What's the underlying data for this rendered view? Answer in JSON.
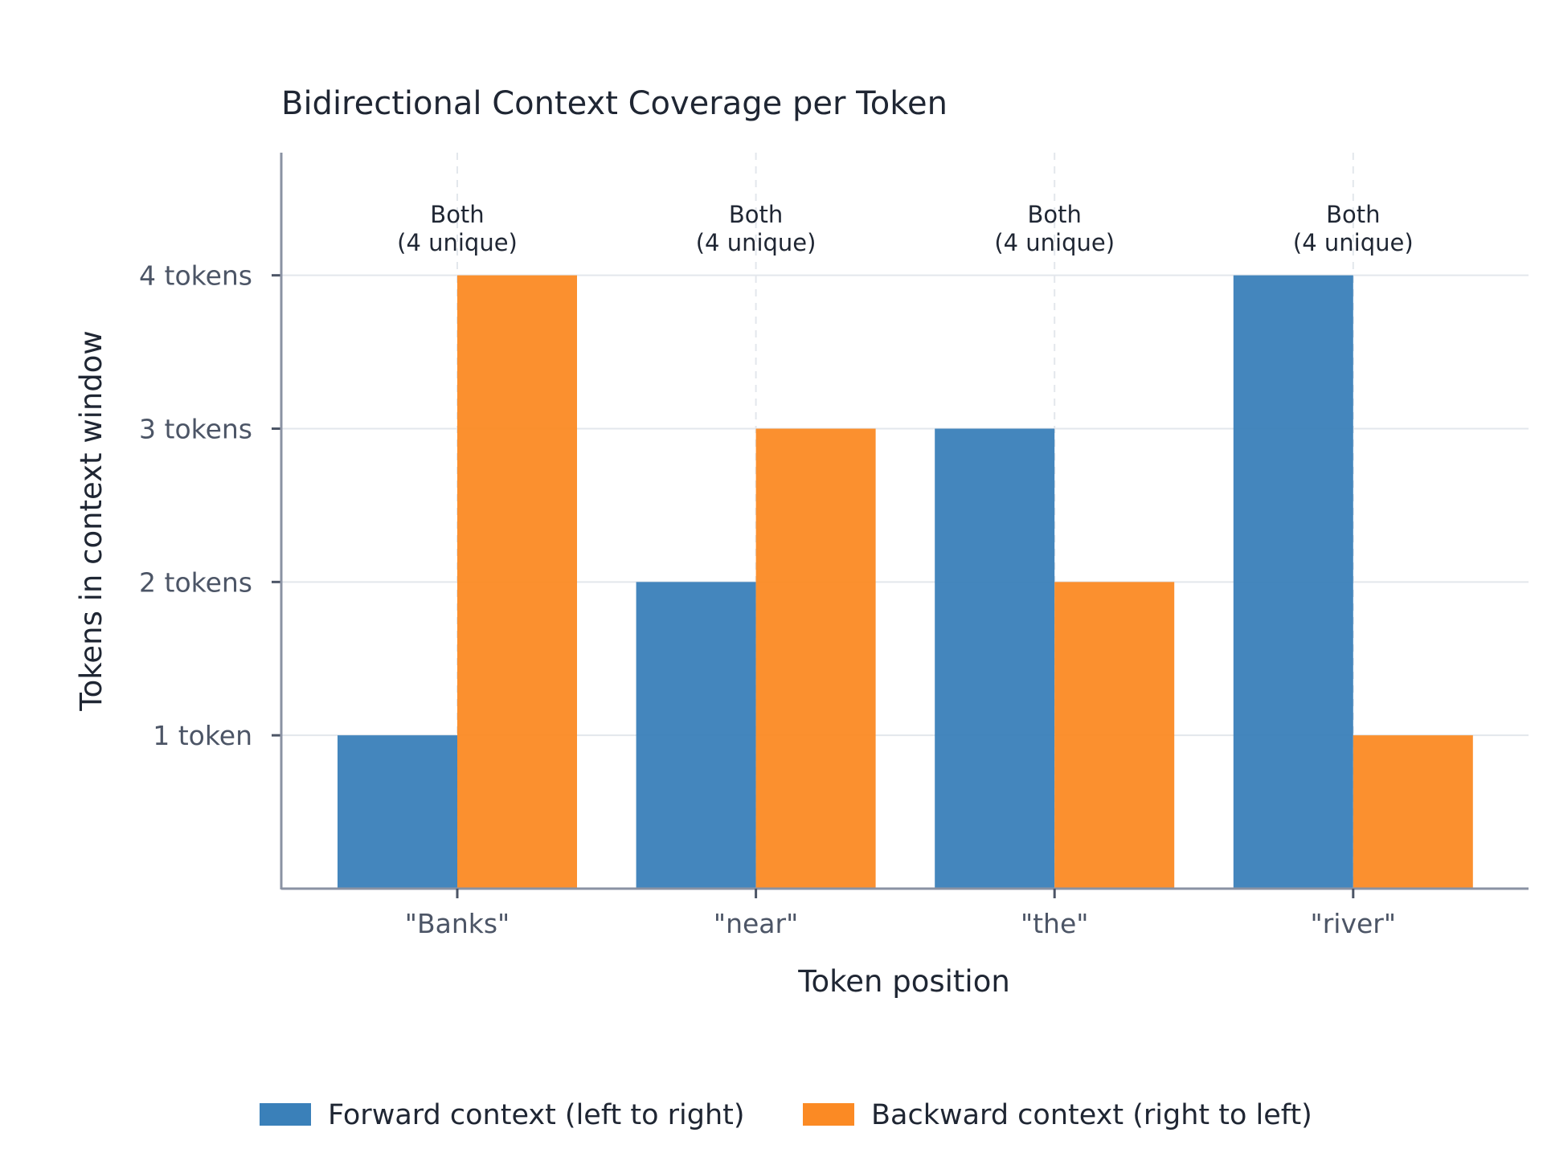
{
  "chart_data": {
    "type": "bar",
    "title": "Bidirectional Context Coverage per Token",
    "xlabel": "Token position",
    "ylabel": "Tokens in context window",
    "categories": [
      "\"Banks\"",
      "\"near\"",
      "\"the\"",
      "\"river\""
    ],
    "series": [
      {
        "name": "Forward context (left to right)",
        "color": "#3a80b9",
        "values": [
          1,
          2,
          3,
          4
        ]
      },
      {
        "name": "Backward context (right to left)",
        "color": "#fb8a24",
        "values": [
          4,
          3,
          2,
          1
        ]
      }
    ],
    "y_ticks": [
      {
        "value": 1,
        "label": "1 token"
      },
      {
        "value": 2,
        "label": "2 tokens"
      },
      {
        "value": 3,
        "label": "3 tokens"
      },
      {
        "value": 4,
        "label": "4 tokens"
      }
    ],
    "ylim": [
      0,
      4.8
    ],
    "annotations": [
      {
        "line1": "Both",
        "line2": "(4 unique)"
      },
      {
        "line1": "Both",
        "line2": "(4 unique)"
      },
      {
        "line1": "Both",
        "line2": "(4 unique)"
      },
      {
        "line1": "Both",
        "line2": "(4 unique)"
      }
    ],
    "grid": true,
    "legend_position": "bottom"
  }
}
